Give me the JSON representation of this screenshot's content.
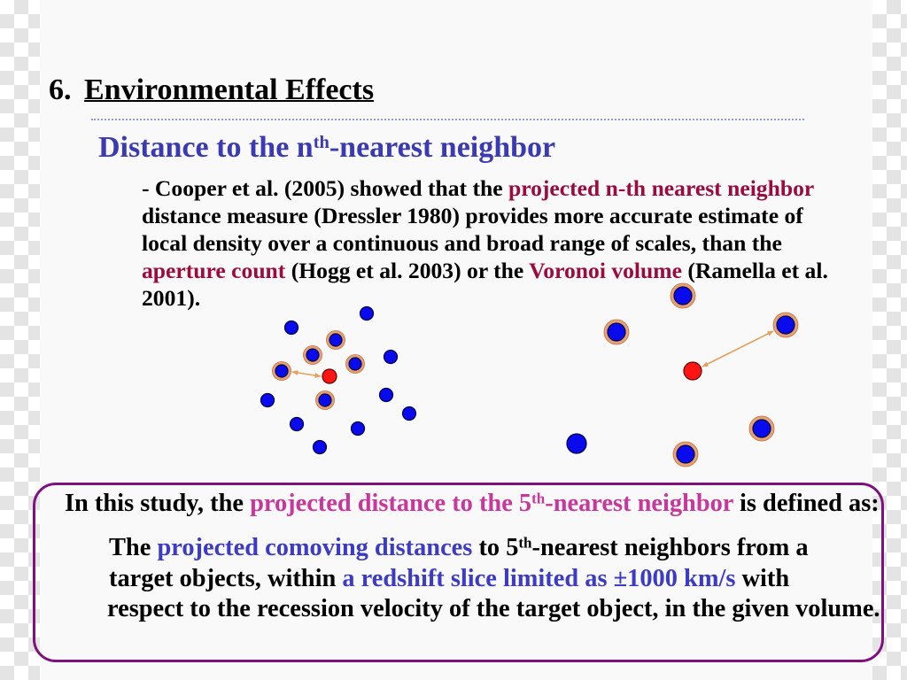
{
  "slide": {
    "heading": {
      "number": "6.",
      "title": "Environmental Effects"
    },
    "subheading": {
      "text": "Distance to the n",
      "superscript": "th",
      "text_after": "-nearest neighbor"
    },
    "body": [
      {
        "text": "- Cooper et al. (2005) showed that the ",
        "highlight": "projected n-th nearest neighbor"
      },
      {
        "text": "distance measure (Dressler 1980) provides more accurate estimate of"
      },
      {
        "text": "local density over a continuous and broad range of scales, than the"
      },
      {
        "highlight": "aperture count",
        "text": " (Hogg et al. 2003) or the ",
        "highlight_2": "Voronoi volume",
        "text_2": " (Ramella et al."
      },
      {
        "text": "2001)."
      }
    ],
    "definition_box": {
      "intro": {
        "text": "In this study, the ",
        "highlight": "projected distance to the 5",
        "highlight_superscript": "th",
        "highlight_after": "-nearest neighbor",
        "text_after": " is defined as:"
      },
      "lines": [
        {
          "text": "The ",
          "highlight": "projected comoving distances",
          "text_2": " to 5",
          "superscript": "th",
          "text_3": "-nearest neighbors from a"
        },
        {
          "text": "target objects, within ",
          "highlight": "a redshift slice limited as ±1000 km/s",
          "text_2": " with"
        },
        {
          "text": "respect to the recession velocity of the target object, in the given volume."
        }
      ]
    }
  },
  "colors": {
    "text": "#000000",
    "slide_background": "#f9f9f9",
    "subheading": "#3a3ab4",
    "body_highlight": "#9c0b3b",
    "definition_highlight": "#c8379b",
    "definition_blue": "#3b3bc6",
    "box_border": "#7e117e",
    "divider": "#8d9ddb",
    "galaxy_fill": "#0a0aee",
    "galaxy_outline": "#00004a",
    "neighbor_ring": "#e9a173",
    "target_fill": "#ff1414",
    "arrow": "#e2a25e"
  }
}
